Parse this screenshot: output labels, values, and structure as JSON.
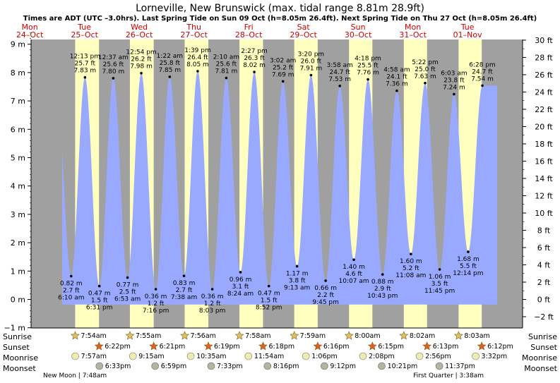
{
  "chart_data": {
    "type": "area",
    "title": "Lorneville, New Brunswick (max. tidal range 8.81m 28.9ft)",
    "subtitle": "Times are ADT (UTC –3.0hrs). Last Spring Tide on Sun 09 Oct (h=8.05m 26.4ft). Next Spring Tide on Thu 27 Oct (h=8.05m 26.4ft)",
    "ylabel_left": "m",
    "ylabel_right": "ft",
    "ylim_m": [
      -1,
      9.6
    ],
    "yticks_m": [
      "−1 m",
      "0 m",
      "1 m",
      "2 m",
      "3 m",
      "4 m",
      "5 m",
      "6 m",
      "7 m",
      "8 m",
      "9 m"
    ],
    "yticks_ft": [
      "−2 ft",
      "0 ft",
      "2 ft",
      "4 ft",
      "6 ft",
      "8 ft",
      "10 ft",
      "12 ft",
      "14 ft",
      "16 ft",
      "18 ft",
      "20 ft",
      "22 ft",
      "24 ft",
      "26 ft",
      "28 ft",
      "30 ft"
    ],
    "days": [
      {
        "dow": "Mon",
        "date": "24–Oct",
        "day": 0
      },
      {
        "dow": "Tue",
        "date": "25–Oct",
        "day": 1
      },
      {
        "dow": "Wed",
        "date": "26–Oct",
        "day": 2
      },
      {
        "dow": "Thu",
        "date": "27–Oct",
        "day": 3
      },
      {
        "dow": "Fri",
        "date": "28–Oct",
        "day": 4
      },
      {
        "dow": "Sat",
        "date": "29–Oct",
        "day": 5
      },
      {
        "dow": "Sun",
        "date": "30–Oct",
        "day": 6
      },
      {
        "dow": "Mon",
        "date": "31–Oct",
        "day": 7
      },
      {
        "dow": "Tue",
        "date": "01–Nov",
        "day": 8
      }
    ],
    "daylight": [
      {
        "day": 1,
        "rise": "7:54",
        "set": "18:22"
      },
      {
        "day": 2,
        "rise": "7:55",
        "set": "18:21"
      },
      {
        "day": 3,
        "rise": "7:56",
        "set": "18:19"
      },
      {
        "day": 4,
        "rise": "7:58",
        "set": "18:18"
      },
      {
        "day": 5,
        "rise": "7:59",
        "set": "18:16"
      },
      {
        "day": 6,
        "rise": "8:00",
        "set": "18:15"
      },
      {
        "day": 7,
        "rise": "8:02",
        "set": "18:13"
      },
      {
        "day": 8,
        "rise": "8:03",
        "set": "18:12"
      }
    ],
    "tides": [
      {
        "type": "high",
        "day": 0,
        "clock": "23:35",
        "m": 7.6,
        "show": false,
        "time": "",
        "ft": "",
        "mlabel": ""
      },
      {
        "type": "low",
        "day": 1,
        "clock": "6:10",
        "m": 0.82,
        "show": true,
        "time": "6:10 am",
        "ft": "2.7 ft",
        "mlabel": "0.82 m"
      },
      {
        "type": "high",
        "day": 1,
        "clock": "12:13",
        "m": 7.83,
        "show": true,
        "time": "12:13 pm",
        "ft": "25.7 ft",
        "mlabel": "7.83 m"
      },
      {
        "type": "low",
        "day": 1,
        "clock": "18:31",
        "m": 0.47,
        "show": true,
        "time": "6:31 pm",
        "ft": "1.5 ft",
        "mlabel": "0.47 m"
      },
      {
        "type": "high",
        "day": 2,
        "clock": "0:37",
        "m": 7.8,
        "show": true,
        "time": "12:37 am",
        "ft": "25.6 ft",
        "mlabel": "7.80 m"
      },
      {
        "type": "low",
        "day": 2,
        "clock": "6:53",
        "m": 0.77,
        "show": true,
        "time": "6:53 am",
        "ft": "2.5 ft",
        "mlabel": "0.77 m"
      },
      {
        "type": "high",
        "day": 2,
        "clock": "12:54",
        "m": 7.98,
        "show": true,
        "time": "12:54 pm",
        "ft": "26.2 ft",
        "mlabel": "7.98 m"
      },
      {
        "type": "low",
        "day": 2,
        "clock": "19:16",
        "m": 0.36,
        "show": true,
        "time": "7:16 pm",
        "ft": "1.2 ft",
        "mlabel": "0.36 m"
      },
      {
        "type": "high",
        "day": 3,
        "clock": "1:22",
        "m": 7.85,
        "show": true,
        "time": "1:22 am",
        "ft": "25.8 ft",
        "mlabel": "7.85 m"
      },
      {
        "type": "low",
        "day": 3,
        "clock": "7:38",
        "m": 0.83,
        "show": true,
        "time": "7:38 am",
        "ft": "2.7 ft",
        "mlabel": "0.83 m"
      },
      {
        "type": "high",
        "day": 3,
        "clock": "13:39",
        "m": 8.05,
        "show": true,
        "time": "1:39 pm",
        "ft": "26.4 ft",
        "mlabel": "8.05 m"
      },
      {
        "type": "low",
        "day": 3,
        "clock": "20:03",
        "m": 0.36,
        "show": true,
        "time": "8:03 pm",
        "ft": "1.2 ft",
        "mlabel": "0.36 m"
      },
      {
        "type": "high",
        "day": 4,
        "clock": "2:10",
        "m": 7.81,
        "show": true,
        "time": "2:10 am",
        "ft": "25.6 ft",
        "mlabel": "7.81 m"
      },
      {
        "type": "low",
        "day": 4,
        "clock": "8:24",
        "m": 0.96,
        "show": true,
        "time": "8:24 am",
        "ft": "3.1 ft",
        "mlabel": "0.96 m"
      },
      {
        "type": "high",
        "day": 4,
        "clock": "14:27",
        "m": 8.02,
        "show": true,
        "time": "2:27 pm",
        "ft": "26.3 ft",
        "mlabel": "8.02 m"
      },
      {
        "type": "low",
        "day": 4,
        "clock": "20:52",
        "m": 0.47,
        "show": true,
        "time": "8:52 pm",
        "ft": "1.5 ft",
        "mlabel": "0.47 m"
      },
      {
        "type": "high",
        "day": 5,
        "clock": "3:02",
        "m": 7.69,
        "show": true,
        "time": "3:02 am",
        "ft": "25.2 ft",
        "mlabel": "7.69 m"
      },
      {
        "type": "low",
        "day": 5,
        "clock": "9:13",
        "m": 1.17,
        "show": true,
        "time": "9:13 am",
        "ft": "3.8 ft",
        "mlabel": "1.17 m"
      },
      {
        "type": "high",
        "day": 5,
        "clock": "15:20",
        "m": 7.91,
        "show": true,
        "time": "3:20 pm",
        "ft": "26.0 ft",
        "mlabel": "7.91 m"
      },
      {
        "type": "low",
        "day": 5,
        "clock": "21:45",
        "m": 0.66,
        "show": true,
        "time": "9:45 pm",
        "ft": "2.2 ft",
        "mlabel": "0.66 m"
      },
      {
        "type": "high",
        "day": 6,
        "clock": "3:58",
        "m": 7.53,
        "show": true,
        "time": "3:58 am",
        "ft": "24.7 ft",
        "mlabel": "7.53 m"
      },
      {
        "type": "low",
        "day": 6,
        "clock": "10:07",
        "m": 1.4,
        "show": true,
        "time": "10:07 am",
        "ft": "4.6 ft",
        "mlabel": "1.40 m"
      },
      {
        "type": "high",
        "day": 6,
        "clock": "16:18",
        "m": 7.76,
        "show": true,
        "time": "4:18 pm",
        "ft": "25.5 ft",
        "mlabel": "7.76 m"
      },
      {
        "type": "low",
        "day": 6,
        "clock": "22:43",
        "m": 0.88,
        "show": true,
        "time": "10:43 pm",
        "ft": "2.9 ft",
        "mlabel": "0.88 m"
      },
      {
        "type": "high",
        "day": 7,
        "clock": "4:58",
        "m": 7.36,
        "show": true,
        "time": "4:58 am",
        "ft": "24.1 ft",
        "mlabel": "7.36 m"
      },
      {
        "type": "low",
        "day": 7,
        "clock": "11:08",
        "m": 1.6,
        "show": true,
        "time": "11:08 am",
        "ft": "5.2 ft",
        "mlabel": "1.60 m"
      },
      {
        "type": "high",
        "day": 7,
        "clock": "17:22",
        "m": 7.63,
        "show": true,
        "time": "5:22 pm",
        "ft": "25.0 ft",
        "mlabel": "7.63 m"
      },
      {
        "type": "low",
        "day": 7,
        "clock": "23:45",
        "m": 1.06,
        "show": true,
        "time": "11:45 pm",
        "ft": "3.5 ft",
        "mlabel": "1.06 m"
      },
      {
        "type": "high",
        "day": 8,
        "clock": "6:03",
        "m": 7.24,
        "show": true,
        "time": "6:03 am",
        "ft": "23.8 ft",
        "mlabel": "7.24 m"
      },
      {
        "type": "low",
        "day": 8,
        "clock": "12:14",
        "m": 1.68,
        "show": true,
        "time": "12:14 pm",
        "ft": "5.5 ft",
        "mlabel": "1.68 m"
      },
      {
        "type": "high",
        "day": 8,
        "clock": "18:28",
        "m": 7.54,
        "show": true,
        "time": "6:28 pm",
        "ft": "24.7 ft",
        "mlabel": "7.54 m"
      }
    ],
    "rows": {
      "sunrise": "Sunrise",
      "sunset": "Sunset",
      "moonrise": "Moonrise",
      "moonset": "Moonset"
    },
    "sun_moon": [
      {
        "day": 1,
        "sunrise": "7:54am",
        "sunset": "6:22pm",
        "moonrise": "7:57am",
        "moonset": "6:33pm"
      },
      {
        "day": 2,
        "sunrise": "7:55am",
        "sunset": "6:21pm",
        "moonrise": "9:15am",
        "moonset": "6:59pm"
      },
      {
        "day": 3,
        "sunrise": "7:56am",
        "sunset": "6:19pm",
        "moonrise": "10:35am",
        "moonset": "7:33pm"
      },
      {
        "day": 4,
        "sunrise": "7:58am",
        "sunset": "6:18pm",
        "moonrise": "11:54am",
        "moonset": "8:16pm"
      },
      {
        "day": 5,
        "sunrise": "7:59am",
        "sunset": "6:16pm",
        "moonrise": "1:06pm",
        "moonset": "9:12pm"
      },
      {
        "day": 6,
        "sunrise": "8:00am",
        "sunset": "6:15pm",
        "moonrise": "2:08pm",
        "moonset": "10:21pm"
      },
      {
        "day": 7,
        "sunrise": "8:02am",
        "sunset": "6:13pm",
        "moonrise": "2:56pm",
        "moonset": "11:37pm"
      },
      {
        "day": 8,
        "sunrise": "8:03am",
        "sunset": "6:12pm",
        "moonrise": "3:32pm",
        "moonset": ""
      }
    ],
    "moon_phases": [
      {
        "day": 1,
        "clock": "7:48",
        "text": "New Moon | 7:48am"
      },
      {
        "day": 8,
        "clock": "3:38",
        "text": "First Quarter | 3:38am"
      }
    ],
    "colors": {
      "night": "#a0a0a0",
      "day": "#ffffc0",
      "tide_fill": "#99a9ff",
      "sun_star": "#e0c060",
      "sunset_star": "#e06020",
      "moon_rise": "#f0ecb0",
      "moon_set": "#b4b4a0",
      "day_label": "#cc0000"
    }
  }
}
